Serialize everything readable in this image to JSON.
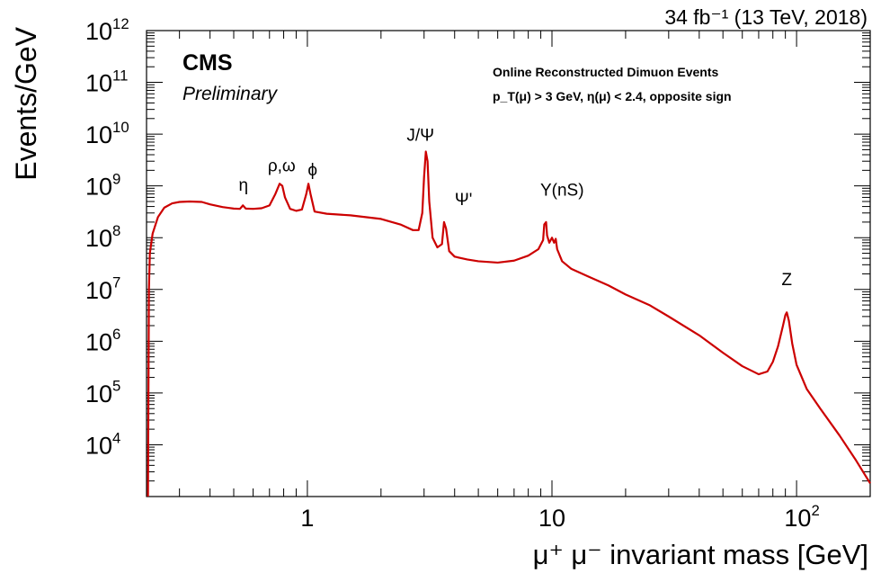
{
  "chart_data": {
    "type": "line",
    "title": "",
    "lumi": "34 fb⁻¹ (13 TeV, 2018)",
    "experiment": "CMS",
    "status": "Preliminary",
    "description_line1": "Online Reconstructed Dimuon Events",
    "description_line2": "p_T(μ) > 3 GeV, η(μ) < 2.4, opposite sign",
    "xlabel": "μ⁺ μ⁻ invariant mass [GeV]",
    "ylabel": "Events/GeV",
    "xscale": "log",
    "yscale": "log",
    "xlim": [
      0.22,
      200
    ],
    "ylim": [
      1000,
      1000000000000
    ],
    "x_tick_labels": [
      {
        "value": 1,
        "base": "1",
        "exp": ""
      },
      {
        "value": 10,
        "base": "10",
        "exp": ""
      },
      {
        "value": 100,
        "base": "10",
        "exp": "2"
      }
    ],
    "y_tick_labels": [
      {
        "value": 10000,
        "base": "10",
        "exp": "4"
      },
      {
        "value": 100000,
        "base": "10",
        "exp": "5"
      },
      {
        "value": 1000000,
        "base": "10",
        "exp": "6"
      },
      {
        "value": 10000000,
        "base": "10",
        "exp": "7"
      },
      {
        "value": 100000000,
        "base": "10",
        "exp": "8"
      },
      {
        "value": 1000000000,
        "base": "10",
        "exp": "9"
      },
      {
        "value": 10000000000,
        "base": "10",
        "exp": "10"
      },
      {
        "value": 100000000000,
        "base": "10",
        "exp": "11"
      },
      {
        "value": 1000000000000,
        "base": "10",
        "exp": "12"
      }
    ],
    "grid": false,
    "series": [
      {
        "color": "#cc0000",
        "points": [
          [
            0.223,
            1000
          ],
          [
            0.225,
            10000000
          ],
          [
            0.227,
            50000000
          ],
          [
            0.233,
            120000000
          ],
          [
            0.245,
            250000000
          ],
          [
            0.26,
            380000000
          ],
          [
            0.28,
            460000000
          ],
          [
            0.3,
            490000000
          ],
          [
            0.33,
            500000000
          ],
          [
            0.37,
            490000000
          ],
          [
            0.4,
            440000000
          ],
          [
            0.45,
            390000000
          ],
          [
            0.5,
            365000000
          ],
          [
            0.53,
            360000000
          ],
          [
            0.545,
            420000000
          ],
          [
            0.56,
            365000000
          ],
          [
            0.6,
            360000000
          ],
          [
            0.65,
            370000000
          ],
          [
            0.7,
            420000000
          ],
          [
            0.74,
            700000000
          ],
          [
            0.77,
            1100000000
          ],
          [
            0.79,
            1000000000
          ],
          [
            0.81,
            600000000
          ],
          [
            0.85,
            360000000
          ],
          [
            0.9,
            330000000
          ],
          [
            0.95,
            350000000
          ],
          [
            0.99,
            700000000
          ],
          [
            1.01,
            1100000000
          ],
          [
            1.03,
            700000000
          ],
          [
            1.07,
            320000000
          ],
          [
            1.2,
            290000000
          ],
          [
            1.5,
            270000000
          ],
          [
            2.0,
            230000000
          ],
          [
            2.4,
            180000000
          ],
          [
            2.7,
            140000000
          ],
          [
            2.85,
            140000000
          ],
          [
            2.95,
            300000000
          ],
          [
            3.0,
            1500000000
          ],
          [
            3.05,
            4600000000
          ],
          [
            3.1,
            3000000000
          ],
          [
            3.15,
            500000000
          ],
          [
            3.25,
            100000000
          ],
          [
            3.4,
            65000000
          ],
          [
            3.55,
            75000000
          ],
          [
            3.62,
            200000000
          ],
          [
            3.69,
            150000000
          ],
          [
            3.8,
            55000000
          ],
          [
            4.0,
            43000000
          ],
          [
            4.5,
            38000000
          ],
          [
            5.0,
            35000000
          ],
          [
            6.0,
            33000000
          ],
          [
            7.0,
            36000000
          ],
          [
            8.0,
            45000000
          ],
          [
            8.8,
            60000000
          ],
          [
            9.2,
            90000000
          ],
          [
            9.3,
            180000000
          ],
          [
            9.46,
            200000000
          ],
          [
            9.55,
            110000000
          ],
          [
            9.75,
            80000000
          ],
          [
            10.0,
            100000000
          ],
          [
            10.2,
            80000000
          ],
          [
            10.36,
            95000000
          ],
          [
            10.5,
            60000000
          ],
          [
            11.0,
            35000000
          ],
          [
            12.0,
            25000000
          ],
          [
            14.0,
            18000000
          ],
          [
            17.0,
            12000000
          ],
          [
            20.0,
            8000000
          ],
          [
            25.0,
            5000000
          ],
          [
            30.0,
            3000000
          ],
          [
            40.0,
            1300000
          ],
          [
            50.0,
            600000
          ],
          [
            60.0,
            330000
          ],
          [
            70.0,
            230000
          ],
          [
            76.0,
            260000
          ],
          [
            80.0,
            400000
          ],
          [
            84.0,
            800000
          ],
          [
            88.0,
            2000000
          ],
          [
            90.0,
            3200000
          ],
          [
            91.2,
            3600000
          ],
          [
            93.0,
            2500000
          ],
          [
            96.0,
            900000
          ],
          [
            100.0,
            350000
          ],
          [
            110.0,
            120000
          ],
          [
            125.0,
            50000
          ],
          [
            150.0,
            15000
          ],
          [
            175.0,
            5000
          ],
          [
            200.0,
            1800
          ]
        ]
      }
    ],
    "annotations": [
      {
        "text": "η",
        "x": 0.548,
        "y": 800000000
      },
      {
        "text": "ρ,ω",
        "x": 0.785,
        "y": 1900000000
      },
      {
        "text": "ϕ",
        "x": 1.05,
        "y": 1600000000
      },
      {
        "text": "J/Ψ",
        "x": 2.9,
        "y": 7500000000
      },
      {
        "text": "Ψ'",
        "x": 4.35,
        "y": 430000000
      },
      {
        "text": "Y(nS)",
        "x": 11.0,
        "y": 650000000
      },
      {
        "text": "Z",
        "x": 91.2,
        "y": 12000000
      }
    ]
  }
}
